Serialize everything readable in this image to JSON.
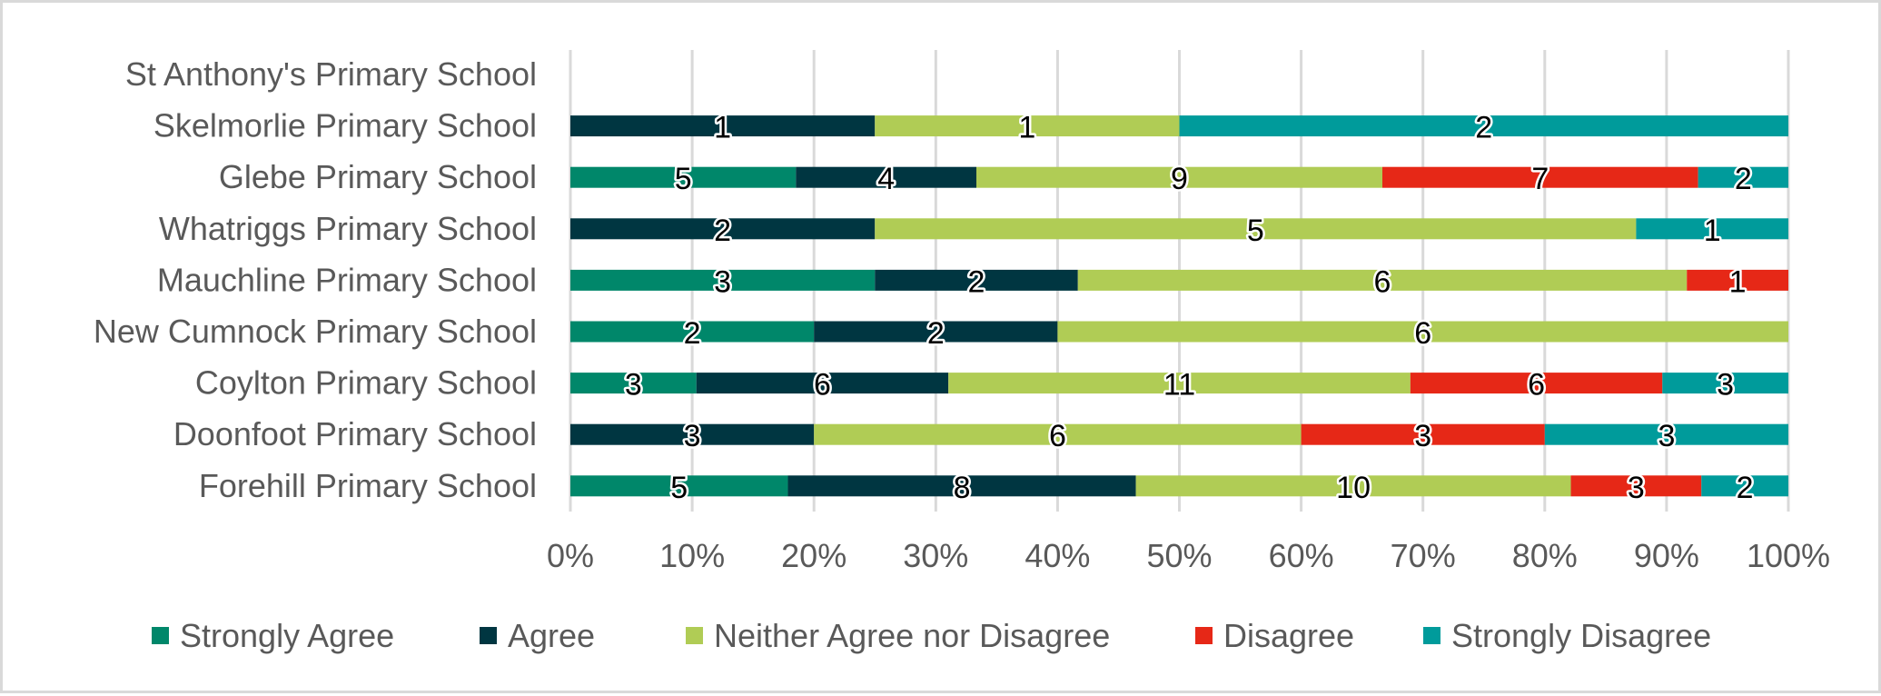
{
  "chart_data": {
    "type": "bar",
    "orientation": "horizontal",
    "stacked": "percent",
    "title": "",
    "xlabel": "",
    "ylabel": "",
    "xlim": [
      0,
      100
    ],
    "grid": true,
    "legend_position": "bottom",
    "categories": [
      "St Anthony's Primary School",
      "Skelmorlie Primary School",
      "Glebe Primary School",
      "Whatriggs Primary School",
      "Mauchline Primary School",
      "New Cumnock Primary School",
      "Coylton Primary School",
      "Doonfoot Primary School",
      "Forehill Primary School"
    ],
    "x_ticks": [
      "0%",
      "10%",
      "20%",
      "30%",
      "40%",
      "50%",
      "60%",
      "70%",
      "80%",
      "90%",
      "100%"
    ],
    "series": [
      {
        "name": "Strongly Agree",
        "color": "#00876a",
        "values": [
          0,
          0,
          5,
          0,
          3,
          2,
          3,
          0,
          5
        ]
      },
      {
        "name": "Agree",
        "color": "#003641",
        "values": [
          0,
          1,
          4,
          2,
          2,
          2,
          6,
          3,
          8
        ]
      },
      {
        "name": "Neither Agree nor Disagree",
        "color": "#b0cc55",
        "values": [
          0,
          1,
          9,
          5,
          6,
          6,
          11,
          6,
          10
        ]
      },
      {
        "name": "Disagree",
        "color": "#e62817",
        "values": [
          0,
          0,
          7,
          0,
          1,
          0,
          6,
          3,
          3
        ]
      },
      {
        "name": "Strongly Disagree",
        "color": "#009b9b",
        "values": [
          0,
          2,
          2,
          1,
          0,
          0,
          3,
          3,
          2
        ]
      }
    ]
  }
}
